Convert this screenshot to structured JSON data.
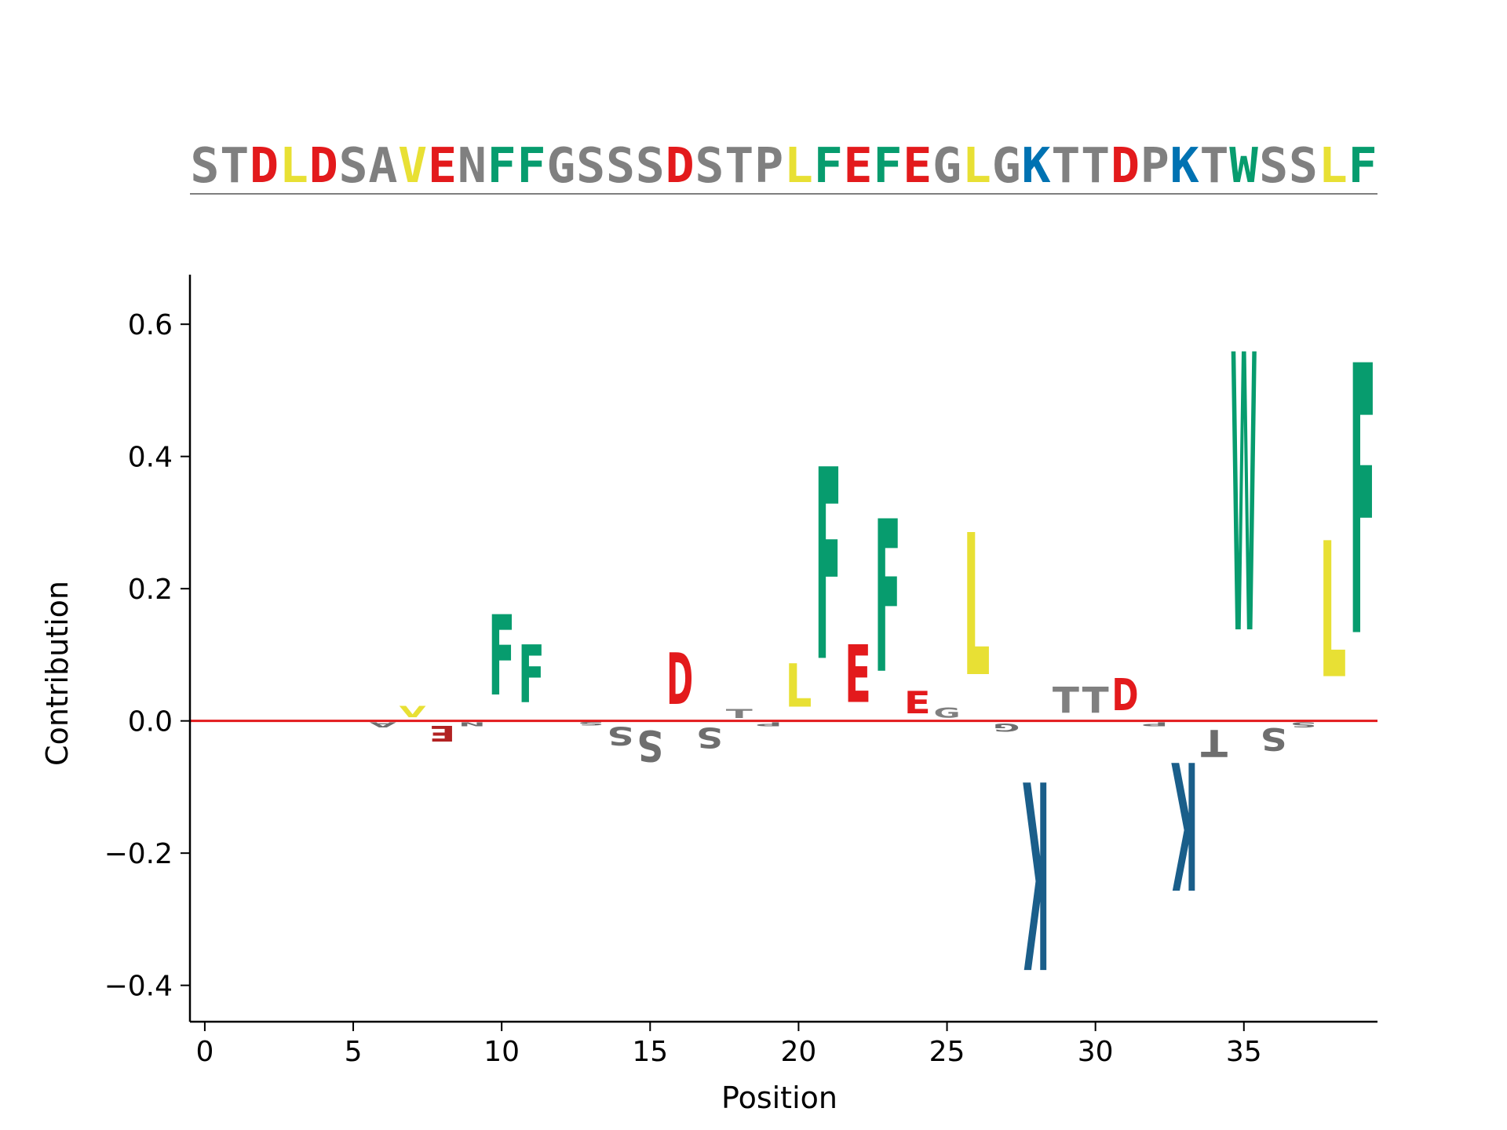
{
  "chart_data": {
    "type": "sequence-logo",
    "sequence": "STDLDSAVENFFGSSSDSTPLFEFEGLGKTTDPKTWSSLF",
    "xlabel": "Position",
    "ylabel": "Contribution",
    "xlim": [
      -0.5,
      39.5
    ],
    "ylim": [
      -0.455,
      0.675
    ],
    "xticks": [
      0,
      5,
      10,
      15,
      20,
      25,
      30,
      35
    ],
    "xtick_labels": [
      "0",
      "5",
      "10",
      "15",
      "20",
      "25",
      "30",
      "35"
    ],
    "yticks": [
      -0.4,
      -0.2,
      0.0,
      0.2,
      0.4,
      0.6
    ],
    "ytick_labels": [
      "−0.4",
      "−0.2",
      "0.0",
      "0.2",
      "0.4",
      "0.6"
    ],
    "baseline_color": "#e31a1c",
    "colors": {
      "acidic": "#e31a1c",
      "acidic_negative": "#b22222",
      "aromatic": "#079c6e",
      "hydrophobic": "#e8e034",
      "basic": "#0072b2",
      "basic_negative": "#1a5e8a",
      "other": "#808080",
      "other_negative": "#6e6e6e"
    },
    "contributions": [
      {
        "position": 0,
        "residue": "S",
        "value": 0.0
      },
      {
        "position": 1,
        "residue": "T",
        "value": 0.0
      },
      {
        "position": 2,
        "residue": "D",
        "value": 0.0
      },
      {
        "position": 3,
        "residue": "L",
        "value": 0.0
      },
      {
        "position": 4,
        "residue": "D",
        "value": 0.0
      },
      {
        "position": 5,
        "residue": "S",
        "value": 0.0
      },
      {
        "position": 6,
        "residue": "A",
        "value": -0.012
      },
      {
        "position": 7,
        "residue": "V",
        "value": 0.027
      },
      {
        "position": 8,
        "residue": "E",
        "value": -0.038
      },
      {
        "position": 9,
        "residue": "N",
        "value": -0.01
      },
      {
        "position": 10,
        "residue": "F",
        "value": 0.195
      },
      {
        "position": 11,
        "residue": "F",
        "value": 0.14
      },
      {
        "position": 12,
        "residue": "G",
        "value": 0.0
      },
      {
        "position": 13,
        "residue": "S",
        "value": -0.009
      },
      {
        "position": 14,
        "residue": "S",
        "value": -0.045
      },
      {
        "position": 15,
        "residue": "S",
        "value": -0.075
      },
      {
        "position": 16,
        "residue": "D",
        "value": 0.125
      },
      {
        "position": 17,
        "residue": "S",
        "value": -0.05
      },
      {
        "position": 18,
        "residue": "T",
        "value": 0.022
      },
      {
        "position": 19,
        "residue": "P",
        "value": -0.01
      },
      {
        "position": 20,
        "residue": "L",
        "value": 0.105
      },
      {
        "position": 21,
        "residue": "F",
        "value": 0.465
      },
      {
        "position": 22,
        "residue": "E",
        "value": 0.14
      },
      {
        "position": 23,
        "residue": "F",
        "value": 0.37
      },
      {
        "position": 24,
        "residue": "E",
        "value": 0.055
      },
      {
        "position": 25,
        "residue": "G",
        "value": 0.025
      },
      {
        "position": 26,
        "residue": "L",
        "value": 0.345
      },
      {
        "position": 27,
        "residue": "G",
        "value": -0.02
      },
      {
        "position": 28,
        "residue": "K",
        "value": -0.455
      },
      {
        "position": 29,
        "residue": "T",
        "value": 0.063
      },
      {
        "position": 30,
        "residue": "T",
        "value": 0.063
      },
      {
        "position": 31,
        "residue": "D",
        "value": 0.078
      },
      {
        "position": 32,
        "residue": "P",
        "value": -0.01
      },
      {
        "position": 33,
        "residue": "K",
        "value": -0.31
      },
      {
        "position": 34,
        "residue": "T",
        "value": -0.065
      },
      {
        "position": 35,
        "residue": "W",
        "value": 0.675
      },
      {
        "position": 36,
        "residue": "S",
        "value": -0.055
      },
      {
        "position": 37,
        "residue": "S",
        "value": -0.012
      },
      {
        "position": 38,
        "residue": "L",
        "value": 0.33
      },
      {
        "position": 39,
        "residue": "F",
        "value": 0.655
      }
    ]
  }
}
